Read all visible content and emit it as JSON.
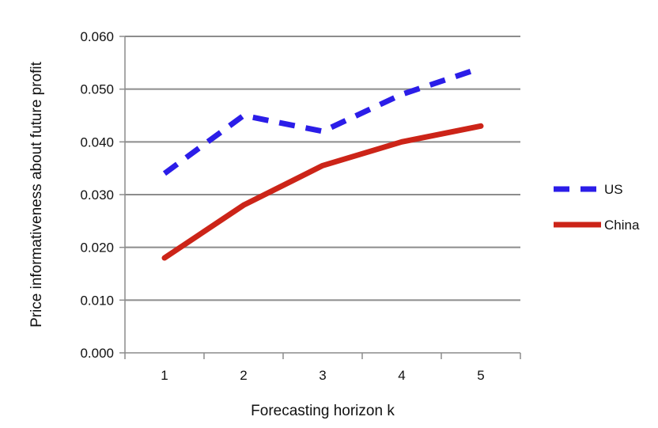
{
  "chart_data": {
    "type": "line",
    "title": "",
    "xlabel": "Forecasting horizon k",
    "ylabel": "Price informativeness about future profit",
    "categories": [
      "1",
      "2",
      "3",
      "4",
      "5"
    ],
    "ylim": [
      0,
      0.06
    ],
    "yticks": [
      "0.000",
      "0.010",
      "0.020",
      "0.030",
      "0.040",
      "0.050",
      "0.060"
    ],
    "grid": true,
    "legend_position": "right",
    "series": [
      {
        "name": "US",
        "values": [
          0.034,
          0.045,
          0.042,
          0.049,
          0.054
        ],
        "color": "#2b1de8",
        "style": "dashed"
      },
      {
        "name": "China",
        "values": [
          0.018,
          0.028,
          0.0355,
          0.04,
          0.043
        ],
        "color": "#cc2418",
        "style": "solid"
      }
    ]
  }
}
